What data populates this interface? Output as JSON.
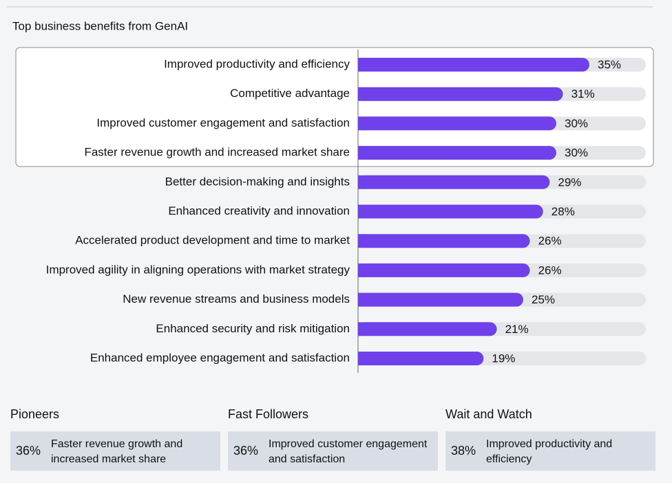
{
  "chart_data": {
    "type": "bar",
    "orientation": "horizontal",
    "title": "Top business benefits from GenAI",
    "categories": [
      "Improved productivity and efficiency",
      "Competitive advantage",
      "Improved customer engagement and satisfaction",
      "Faster revenue growth and increased market share",
      "Better decision-making and insights",
      "Enhanced creativity and innovation",
      "Accelerated product development and time to market",
      "Improved agility in aligning operations with market strategy",
      "New revenue streams and business models",
      "Enhanced security and risk mitigation",
      "Enhanced employee engagement and satisfaction"
    ],
    "values": [
      35,
      31,
      30,
      30,
      29,
      28,
      26,
      26,
      25,
      21,
      19
    ],
    "value_labels": [
      "35%",
      "31%",
      "30%",
      "30%",
      "29%",
      "28%",
      "26%",
      "26%",
      "25%",
      "21%",
      "19%"
    ],
    "color": "#7041ea"
  },
  "segments": [
    {
      "name": "Pioneers",
      "share": "36%",
      "benefit": "Faster revenue growth and increased market share"
    },
    {
      "name": "Fast Followers",
      "share": "36%",
      "benefit": "Improved customer engagement and satisfaction"
    },
    {
      "name": "Wait and Watch",
      "share": "38%",
      "benefit": "Improved productivity and efficiency"
    }
  ]
}
